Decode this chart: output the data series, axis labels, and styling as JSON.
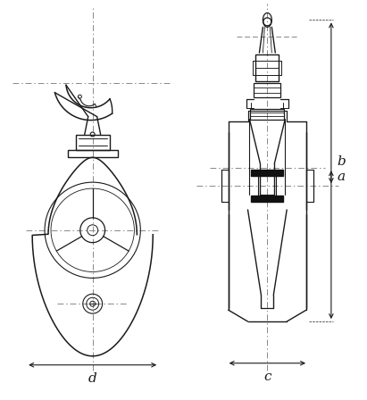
{
  "bg_color": "#ffffff",
  "line_color": "#1a1a1a",
  "dim_color": "#1a1a1a",
  "dash_color": "#888888",
  "labels": {
    "a": "a",
    "b": "b",
    "c": "c",
    "d": "d"
  },
  "figsize": [
    4.11,
    4.48
  ],
  "dpi": 100
}
